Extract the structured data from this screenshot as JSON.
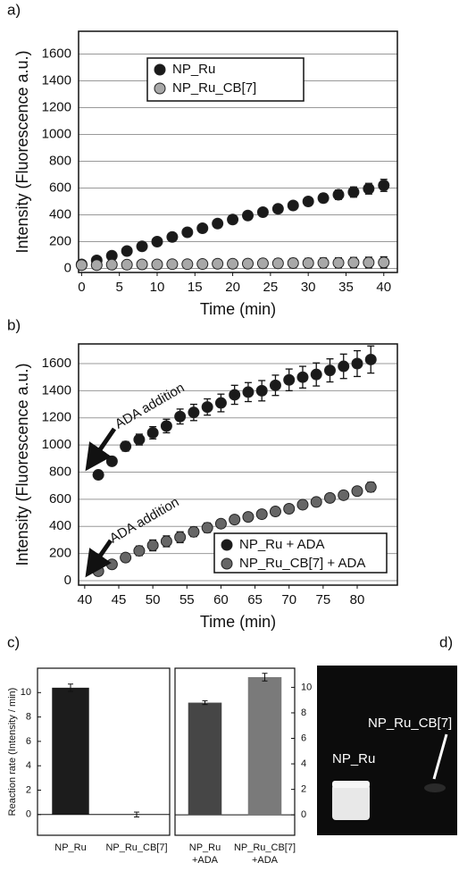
{
  "chart_data": [
    {
      "type": "scatter",
      "panel_label": "a)",
      "xlabel": "Time (min)",
      "ylabel": "Intensity  (Fluorescence a.u.)",
      "x": [
        0,
        2,
        4,
        6,
        8,
        10,
        12,
        14,
        16,
        18,
        20,
        22,
        24,
        26,
        28,
        30,
        32,
        34,
        36,
        38,
        40
      ],
      "series": [
        {
          "name": "NP_Ru",
          "color": "#1a1a1a",
          "values": [
            30,
            60,
            95,
            130,
            165,
            200,
            235,
            270,
            300,
            335,
            365,
            395,
            420,
            445,
            470,
            500,
            525,
            550,
            570,
            595,
            620
          ],
          "errors": [
            10,
            10,
            10,
            12,
            12,
            12,
            14,
            15,
            15,
            16,
            18,
            20,
            22,
            25,
            28,
            30,
            32,
            35,
            38,
            40,
            45
          ]
        },
        {
          "name": "NP_Ru_CB[7]",
          "color": "#a8a8a8",
          "values": [
            25,
            25,
            28,
            28,
            30,
            30,
            32,
            32,
            33,
            35,
            35,
            36,
            38,
            38,
            40,
            40,
            42,
            42,
            44,
            44,
            45
          ],
          "errors": [
            20,
            22,
            24,
            25,
            26,
            27,
            28,
            28,
            29,
            30,
            30,
            31,
            32,
            33,
            34,
            35,
            36,
            37,
            38,
            40,
            42
          ]
        }
      ],
      "xlim": [
        -0.4,
        41.8
      ],
      "xticks": [
        0,
        5,
        10,
        15,
        20,
        25,
        30,
        35,
        40
      ],
      "ylim": [
        -30,
        1770
      ],
      "yticks": [
        0,
        200,
        400,
        600,
        800,
        1000,
        1200,
        1400,
        1600
      ],
      "grid": true
    },
    {
      "type": "scatter",
      "panel_label": "b)",
      "xlabel": "Time (min)",
      "ylabel": "Intensity  (Fluorescence a.u.)",
      "x": [
        42,
        44,
        46,
        48,
        50,
        52,
        54,
        56,
        58,
        60,
        62,
        64,
        66,
        68,
        70,
        72,
        74,
        76,
        78,
        80,
        82
      ],
      "series": [
        {
          "name": "NP_Ru + ADA",
          "color": "#1a1a1a",
          "values": [
            780,
            880,
            990,
            1040,
            1090,
            1140,
            1210,
            1240,
            1280,
            1310,
            1370,
            1390,
            1400,
            1440,
            1480,
            1500,
            1520,
            1550,
            1580,
            1600,
            1630
          ],
          "errors": [
            20,
            25,
            35,
            40,
            45,
            50,
            55,
            60,
            60,
            65,
            70,
            70,
            75,
            75,
            80,
            80,
            85,
            85,
            90,
            95,
            100
          ]
        },
        {
          "name": "NP_Ru_CB[7] + ADA",
          "color": "#666666",
          "values": [
            70,
            120,
            170,
            220,
            260,
            290,
            320,
            360,
            390,
            420,
            450,
            470,
            490,
            510,
            530,
            560,
            580,
            610,
            630,
            660,
            690
          ],
          "errors": [
            15,
            20,
            30,
            35,
            40,
            40,
            40,
            35,
            35,
            30,
            30,
            30,
            30,
            30,
            30,
            30,
            30,
            30,
            30,
            30,
            35
          ]
        }
      ],
      "annotations": [
        "ADA addition",
        "ADA addition"
      ],
      "xlim": [
        39.1,
        85.9
      ],
      "xticks": [
        40,
        45,
        50,
        55,
        60,
        65,
        70,
        75,
        80
      ],
      "ylim": [
        -33,
        1745
      ],
      "yticks": [
        0,
        200,
        400,
        600,
        800,
        1000,
        1200,
        1400,
        1600
      ],
      "grid": true
    },
    {
      "type": "bar",
      "panel_label": "c)",
      "ylabel": "Reaction rate (Intensity / min)",
      "categories": [
        "NP_Ru",
        "NP_Ru_CB[7]"
      ],
      "values": [
        10.4,
        0
      ],
      "errors": [
        0.3,
        0.2
      ],
      "colors": [
        "#1c1c1c",
        "#1c1c1c"
      ],
      "ylim": [
        -1.7,
        12
      ],
      "yticks": [
        0,
        2,
        4,
        6,
        8,
        10
      ],
      "y_axis_side": "left"
    },
    {
      "type": "bar",
      "categories": [
        "NP_Ru\n+ADA",
        "NP_Ru_CB[7]\n+ADA"
      ],
      "values": [
        8.8,
        10.8
      ],
      "errors": [
        0.15,
        0.3
      ],
      "colors": [
        "#464646",
        "#7a7a7a"
      ],
      "ylim": [
        -1.6,
        11.5
      ],
      "yticks": [
        0,
        2,
        4,
        6,
        8,
        10
      ],
      "y_axis_side": "right"
    }
  ],
  "photo": {
    "panel_label": "d)",
    "labels": [
      "NP_Ru",
      "NP_Ru_CB[7]"
    ]
  }
}
